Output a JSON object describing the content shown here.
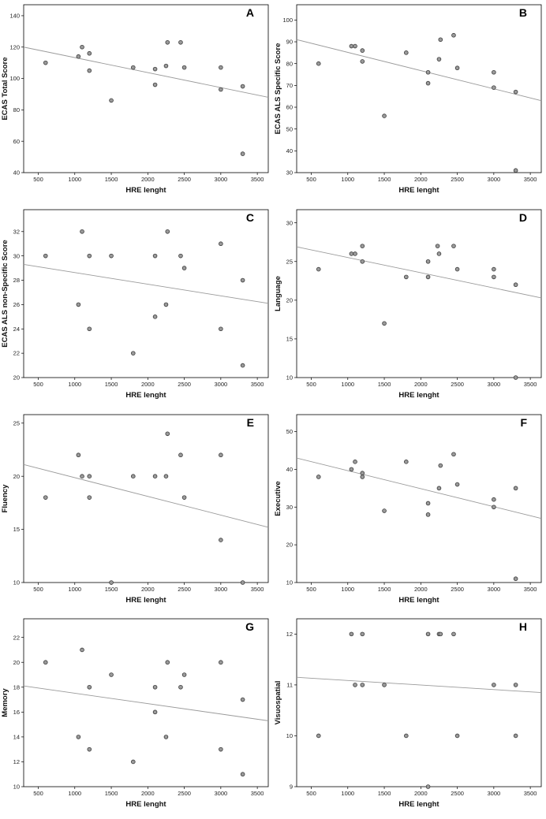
{
  "chart_data": [
    {
      "type": "scatter",
      "panel_label": "A",
      "xlabel": "HRE lenght",
      "ylabel": "ECAS Total Score",
      "xlim": [
        300,
        3650
      ],
      "ylim": [
        40,
        147
      ],
      "xticks": [
        500,
        1000,
        1500,
        2000,
        2500,
        3000,
        3500
      ],
      "yticks": [
        40,
        60,
        80,
        100,
        120,
        140
      ],
      "points": [
        [
          600,
          110
        ],
        [
          1050,
          114
        ],
        [
          1100,
          120
        ],
        [
          1200,
          116
        ],
        [
          1200,
          105
        ],
        [
          1500,
          86
        ],
        [
          1800,
          107
        ],
        [
          2100,
          106
        ],
        [
          2100,
          96
        ],
        [
          2250,
          108
        ],
        [
          2270,
          123
        ],
        [
          2450,
          123
        ],
        [
          2500,
          107
        ],
        [
          3000,
          107
        ],
        [
          3000,
          93
        ],
        [
          3300,
          95
        ],
        [
          3300,
          52
        ]
      ],
      "fit_line": [
        [
          300,
          120
        ],
        [
          3650,
          88
        ]
      ]
    },
    {
      "type": "scatter",
      "panel_label": "B",
      "xlabel": "HRE lenght",
      "ylabel": "ECAS ALS Specific Score",
      "xlim": [
        300,
        3650
      ],
      "ylim": [
        30,
        107
      ],
      "xticks": [
        500,
        1000,
        1500,
        2000,
        2500,
        3000,
        3500
      ],
      "yticks": [
        30,
        40,
        50,
        60,
        70,
        80,
        90,
        100
      ],
      "points": [
        [
          600,
          80
        ],
        [
          1050,
          88
        ],
        [
          1100,
          88
        ],
        [
          1200,
          86
        ],
        [
          1200,
          81
        ],
        [
          1500,
          56
        ],
        [
          1800,
          85
        ],
        [
          2100,
          76
        ],
        [
          2100,
          71
        ],
        [
          2250,
          82
        ],
        [
          2270,
          91
        ],
        [
          2450,
          93
        ],
        [
          2500,
          78
        ],
        [
          3000,
          76
        ],
        [
          3000,
          69
        ],
        [
          3300,
          67
        ],
        [
          3300,
          31
        ]
      ],
      "fit_line": [
        [
          300,
          91
        ],
        [
          3650,
          63
        ]
      ]
    },
    {
      "type": "scatter",
      "panel_label": "C",
      "xlabel": "HRE lenght",
      "ylabel": "ECAS ALS non-Specific Score",
      "xlim": [
        300,
        3650
      ],
      "ylim": [
        20,
        33.8
      ],
      "xticks": [
        500,
        1000,
        1500,
        2000,
        2500,
        3000,
        3500
      ],
      "yticks": [
        20,
        22,
        24,
        26,
        28,
        30,
        32
      ],
      "points": [
        [
          600,
          30
        ],
        [
          1050,
          26
        ],
        [
          1100,
          32
        ],
        [
          1200,
          30
        ],
        [
          1200,
          24
        ],
        [
          1500,
          30
        ],
        [
          1800,
          22
        ],
        [
          2100,
          30
        ],
        [
          2100,
          25
        ],
        [
          2250,
          26
        ],
        [
          2270,
          32
        ],
        [
          2450,
          30
        ],
        [
          2500,
          29
        ],
        [
          3000,
          31
        ],
        [
          3000,
          24
        ],
        [
          3300,
          28
        ],
        [
          3300,
          21
        ]
      ],
      "fit_line": [
        [
          300,
          29.3
        ],
        [
          3650,
          26.1
        ]
      ]
    },
    {
      "type": "scatter",
      "panel_label": "D",
      "xlabel": "HRE lenght",
      "ylabel": "Language",
      "xlim": [
        300,
        3650
      ],
      "ylim": [
        10,
        31.7
      ],
      "xticks": [
        500,
        1000,
        1500,
        2000,
        2500,
        3000,
        3500
      ],
      "yticks": [
        10,
        15,
        20,
        25,
        30
      ],
      "points": [
        [
          600,
          24
        ],
        [
          1050,
          26
        ],
        [
          1100,
          26
        ],
        [
          1200,
          27
        ],
        [
          1200,
          25
        ],
        [
          1500,
          17
        ],
        [
          1800,
          23
        ],
        [
          2100,
          25
        ],
        [
          2100,
          23
        ],
        [
          2250,
          26
        ],
        [
          2230,
          27
        ],
        [
          2450,
          27
        ],
        [
          2500,
          24
        ],
        [
          3000,
          24
        ],
        [
          3000,
          23
        ],
        [
          3300,
          22
        ],
        [
          3300,
          10
        ]
      ],
      "fit_line": [
        [
          300,
          26.9
        ],
        [
          3650,
          20.3
        ]
      ]
    },
    {
      "type": "scatter",
      "panel_label": "E",
      "xlabel": "HRE lenght",
      "ylabel": "Fluency",
      "xlim": [
        300,
        3650
      ],
      "ylim": [
        10,
        25.8
      ],
      "xticks": [
        500,
        1000,
        1500,
        2000,
        2500,
        3000,
        3500
      ],
      "yticks": [
        10,
        15,
        20,
        25
      ],
      "points": [
        [
          600,
          18
        ],
        [
          1050,
          22
        ],
        [
          1100,
          20
        ],
        [
          1200,
          20
        ],
        [
          1200,
          18
        ],
        [
          1500,
          10
        ],
        [
          1800,
          20
        ],
        [
          2100,
          20
        ],
        [
          2250,
          20
        ],
        [
          2270,
          24
        ],
        [
          2450,
          22
        ],
        [
          2500,
          18
        ],
        [
          3000,
          22
        ],
        [
          3000,
          14
        ],
        [
          3300,
          10
        ]
      ],
      "fit_line": [
        [
          300,
          21.1
        ],
        [
          3650,
          15.2
        ]
      ]
    },
    {
      "type": "scatter",
      "panel_label": "F",
      "xlabel": "HRE lenght",
      "ylabel": "Executive",
      "xlim": [
        300,
        3650
      ],
      "ylim": [
        10,
        54.5
      ],
      "xticks": [
        500,
        1000,
        1500,
        2000,
        2500,
        3000,
        3500
      ],
      "yticks": [
        10,
        20,
        30,
        40,
        50
      ],
      "points": [
        [
          600,
          38
        ],
        [
          1050,
          40
        ],
        [
          1100,
          42
        ],
        [
          1200,
          39
        ],
        [
          1200,
          38
        ],
        [
          1500,
          29
        ],
        [
          1800,
          42
        ],
        [
          2100,
          31
        ],
        [
          2100,
          28
        ],
        [
          2250,
          35
        ],
        [
          2270,
          41
        ],
        [
          2450,
          44
        ],
        [
          2500,
          36
        ],
        [
          3000,
          32
        ],
        [
          3000,
          30
        ],
        [
          3300,
          35
        ],
        [
          3300,
          11
        ]
      ],
      "fit_line": [
        [
          300,
          43
        ],
        [
          3650,
          27
        ]
      ]
    },
    {
      "type": "scatter",
      "panel_label": "G",
      "xlabel": "HRE lenght",
      "ylabel": "Memory",
      "xlim": [
        300,
        3650
      ],
      "ylim": [
        10,
        23.5
      ],
      "xticks": [
        500,
        1000,
        1500,
        2000,
        2500,
        3000,
        3500
      ],
      "yticks": [
        10,
        12,
        14,
        16,
        18,
        20,
        22
      ],
      "points": [
        [
          600,
          20
        ],
        [
          1050,
          14
        ],
        [
          1100,
          21
        ],
        [
          1200,
          18
        ],
        [
          1200,
          13
        ],
        [
          1500,
          19
        ],
        [
          1800,
          12
        ],
        [
          2100,
          18
        ],
        [
          2100,
          16
        ],
        [
          2250,
          14
        ],
        [
          2270,
          20
        ],
        [
          2450,
          18
        ],
        [
          2500,
          19
        ],
        [
          3000,
          20
        ],
        [
          3000,
          13
        ],
        [
          3300,
          17
        ],
        [
          3300,
          11
        ]
      ],
      "fit_line": [
        [
          300,
          18.1
        ],
        [
          3650,
          15.3
        ]
      ]
    },
    {
      "type": "scatter",
      "panel_label": "H",
      "xlabel": "HRE lenght",
      "ylabel": "Visuospatial",
      "xlim": [
        300,
        3650
      ],
      "ylim": [
        9,
        12.3
      ],
      "xticks": [
        500,
        1000,
        1500,
        2000,
        2500,
        3000,
        3500
      ],
      "yticks": [
        9,
        10,
        11,
        12
      ],
      "points": [
        [
          600,
          10
        ],
        [
          1050,
          12
        ],
        [
          1100,
          11
        ],
        [
          1200,
          12
        ],
        [
          1200,
          11
        ],
        [
          1500,
          11
        ],
        [
          1800,
          10
        ],
        [
          2100,
          12
        ],
        [
          2100,
          9
        ],
        [
          2250,
          12
        ],
        [
          2270,
          12
        ],
        [
          2450,
          12
        ],
        [
          2500,
          10
        ],
        [
          3000,
          11
        ],
        [
          3300,
          11
        ],
        [
          3300,
          10
        ]
      ],
      "fit_line": [
        [
          300,
          11.15
        ],
        [
          3650,
          10.85
        ]
      ]
    }
  ]
}
